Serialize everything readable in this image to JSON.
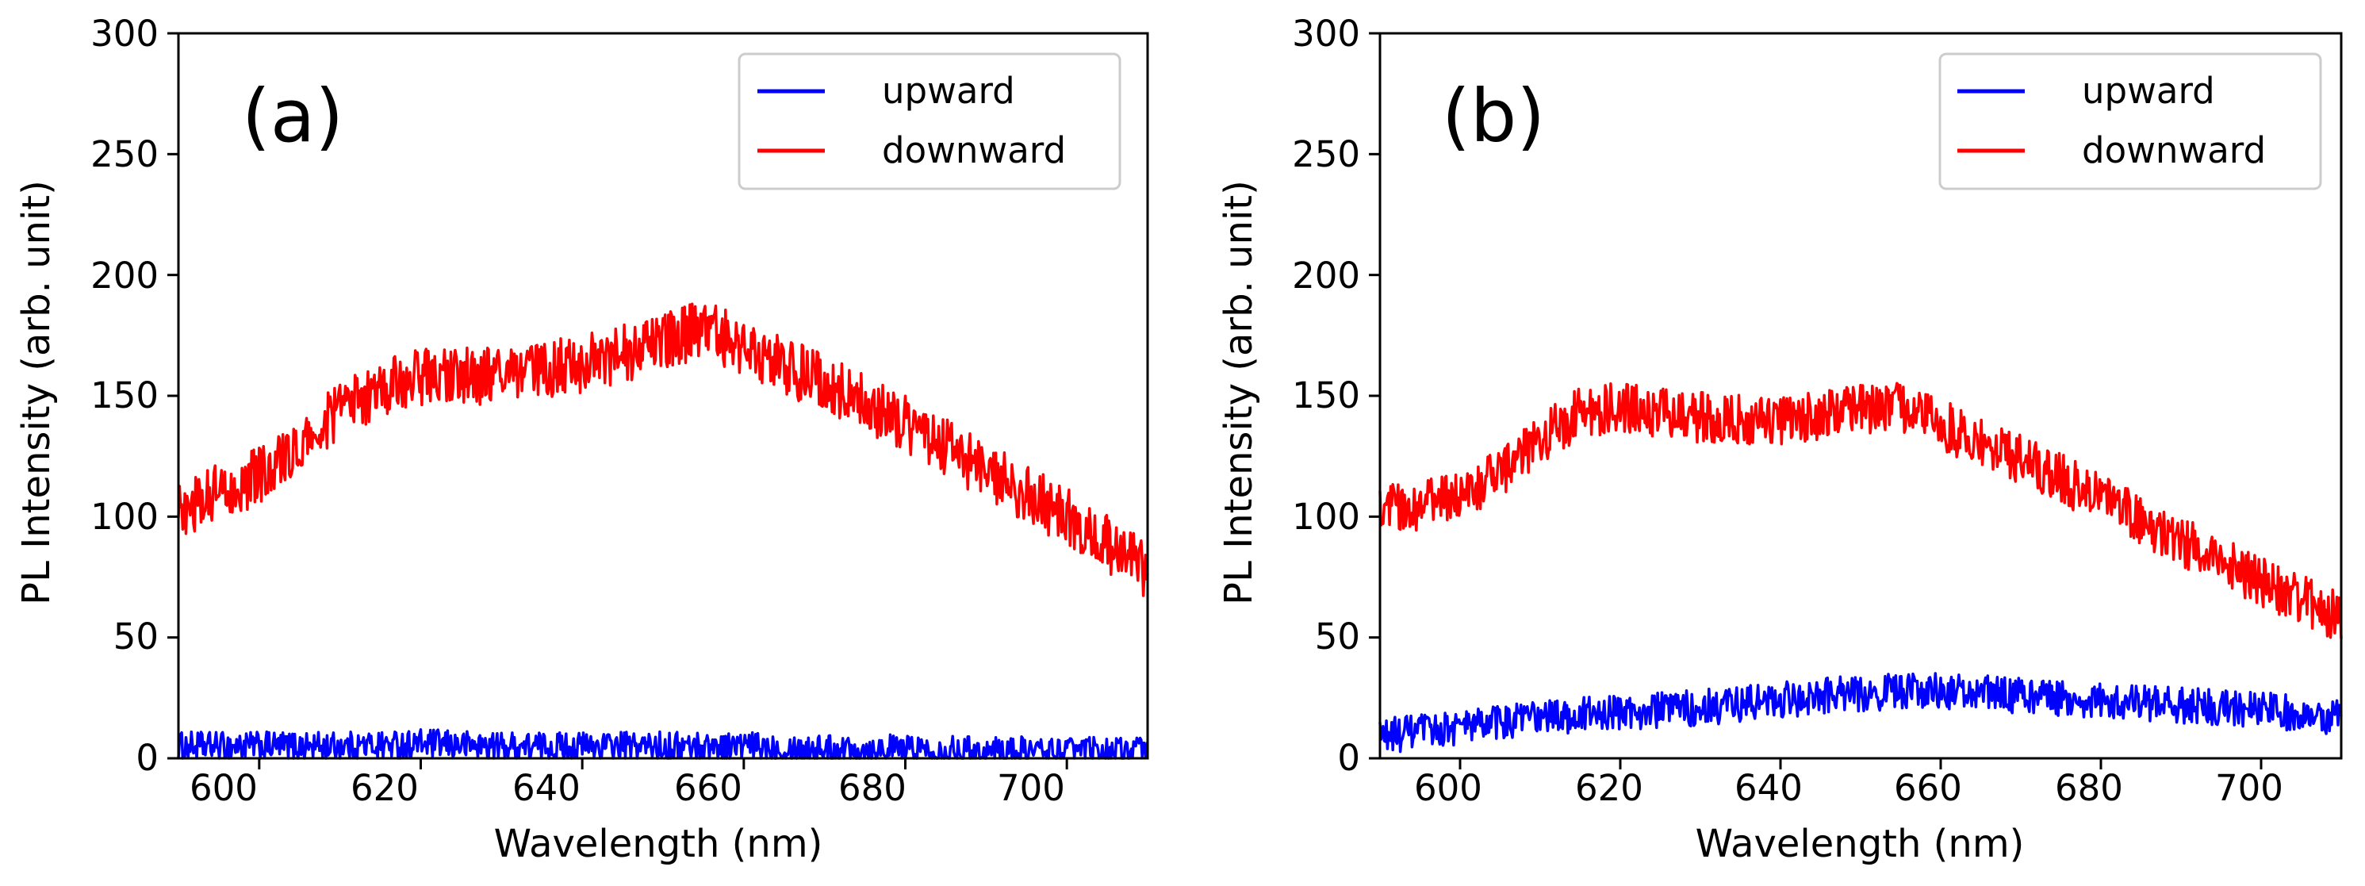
{
  "chart_data": [
    {
      "type": "line",
      "panel_label": "(a)",
      "xlabel": "Wavelength (nm)",
      "ylabel": "PL Intensity (arb. unit)",
      "xlim": [
        590,
        710
      ],
      "ylim": [
        0,
        300
      ],
      "xticks": [
        "600",
        "620",
        "640",
        "660",
        "680",
        "700"
      ],
      "yticks": [
        "0",
        "50",
        "100",
        "150",
        "200",
        "250",
        "300"
      ],
      "legend_position": "top-right",
      "series": [
        {
          "name": "upward",
          "color": "#0000ff",
          "x": [
            590,
            600,
            610,
            620,
            630,
            640,
            650,
            660,
            670,
            680,
            690,
            700,
            710
          ],
          "y": [
            5,
            5,
            5,
            6,
            5,
            5,
            5,
            5,
            4,
            4,
            3,
            3,
            3
          ],
          "noise": 4
        },
        {
          "name": "downward",
          "color": "#ff0000",
          "x": [
            590,
            600,
            605,
            610,
            615,
            620,
            630,
            640,
            650,
            655,
            660,
            670,
            680,
            690,
            700,
            710
          ],
          "y": [
            103,
            117,
            127,
            145,
            153,
            158,
            158,
            163,
            172,
            178,
            170,
            155,
            138,
            119,
            100,
            78
          ],
          "noise": 8
        }
      ]
    },
    {
      "type": "line",
      "panel_label": "(b)",
      "xlabel": "Wavelength (nm)",
      "ylabel": "PL Intensity (arb. unit)",
      "xlim": [
        590,
        710
      ],
      "ylim": [
        0,
        300
      ],
      "xticks": [
        "600",
        "620",
        "640",
        "660",
        "680",
        "700"
      ],
      "yticks": [
        "0",
        "50",
        "100",
        "150",
        "200",
        "250",
        "300"
      ],
      "legend_position": "top-right",
      "series": [
        {
          "name": "upward",
          "color": "#0000ff",
          "x": [
            590,
            600,
            610,
            620,
            630,
            640,
            650,
            660,
            670,
            680,
            690,
            700,
            710
          ],
          "y": [
            9,
            13,
            17,
            19,
            21,
            24,
            27,
            28,
            26,
            24,
            22,
            20,
            17
          ],
          "noise": 5
        },
        {
          "name": "downward",
          "color": "#ff0000",
          "x": [
            590,
            600,
            605,
            610,
            615,
            620,
            630,
            640,
            650,
            655,
            660,
            670,
            680,
            690,
            700,
            710
          ],
          "y": [
            102,
            108,
            118,
            132,
            143,
            145,
            141,
            140,
            145,
            145,
            138,
            124,
            107,
            90,
            73,
            58
          ],
          "noise": 7
        }
      ]
    }
  ]
}
